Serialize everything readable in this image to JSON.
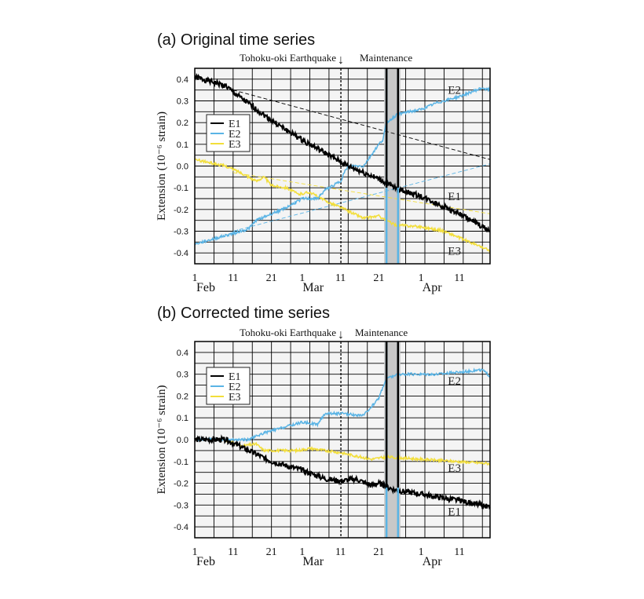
{
  "colors": {
    "E1": "#000000",
    "E2": "#5ab4e5",
    "E3": "#f2de3a",
    "maintenance": "#c8c8c8"
  },
  "chart_data": [
    {
      "type": "line",
      "title": "(a) Original time series",
      "ylabel": "Extension (10⁻⁶ strain)",
      "ylim": [
        -0.45,
        0.45
      ],
      "xlim": [
        "Feb 1",
        "Apr 19"
      ],
      "grid": true,
      "yticks": [
        "0.4",
        "0.3",
        "0.2",
        "0.1",
        "0.0",
        "-0.1",
        "-0.2",
        "-0.3",
        "-0.4"
      ],
      "xticks": [
        {
          "day": "1",
          "month": "Feb"
        },
        {
          "day": "11"
        },
        {
          "day": "21"
        },
        {
          "day": "1",
          "month": "Mar"
        },
        {
          "day": "11"
        },
        {
          "day": "21"
        },
        {
          "day": "1",
          "month": "Apr"
        },
        {
          "day": "11"
        }
      ],
      "annotations": {
        "earthquake": "Tohoku-oki Earthquake",
        "earthquake_date": "Mar 11",
        "arrow": "↓",
        "maintenance": "Maintenance",
        "maintenance_range": [
          "Mar 23",
          "Mar 26"
        ]
      },
      "legend": {
        "placement": "upper-left",
        "entries": [
          "E1",
          "E2",
          "E3"
        ]
      },
      "series": [
        {
          "name": "E1",
          "x": [
            "Feb 1",
            "Feb 9",
            "Feb 11",
            "Feb 21",
            "Mar 1",
            "Mar 11",
            "Mar 13",
            "Mar 21",
            "Mar 25",
            "Apr 1",
            "Apr 11",
            "Apr 19"
          ],
          "y": [
            0.41,
            0.37,
            0.34,
            0.21,
            0.12,
            0.02,
            0.0,
            -0.06,
            -0.1,
            -0.14,
            -0.22,
            -0.3
          ],
          "label_at": [
            "Apr 8",
            -0.14
          ]
        },
        {
          "name": "E2",
          "x": [
            "Feb 1",
            "Feb 11",
            "Feb 15",
            "Feb 17",
            "Feb 21",
            "Feb 25",
            "Mar 1",
            "Mar 5",
            "Mar 7",
            "Mar 11",
            "Mar 12",
            "Mar 13",
            "Mar 17",
            "Mar 19",
            "Mar 21",
            "Mar 22",
            "Mar 23",
            "Mar 26",
            "Apr 1",
            "Apr 5",
            "Apr 11",
            "Apr 17",
            "Apr 19"
          ],
          "y": [
            -0.36,
            -0.31,
            -0.29,
            -0.25,
            -0.22,
            -0.19,
            -0.15,
            -0.15,
            -0.11,
            -0.07,
            -0.03,
            0.0,
            0.0,
            0.05,
            0.1,
            0.12,
            0.2,
            0.24,
            0.26,
            0.29,
            0.32,
            0.36,
            0.35
          ],
          "label_at": [
            "Apr 8",
            0.35
          ]
        },
        {
          "name": "E3",
          "x": [
            "Feb 1",
            "Feb 9",
            "Feb 13",
            "Feb 17",
            "Feb 19",
            "Feb 21",
            "Feb 25",
            "Feb 28",
            "Mar 3",
            "Mar 7",
            "Mar 11",
            "Mar 17",
            "Mar 21",
            "Mar 25",
            "Apr 1",
            "Apr 7",
            "Apr 11",
            "Apr 19"
          ],
          "y": [
            0.03,
            0.0,
            -0.03,
            -0.07,
            -0.05,
            -0.09,
            -0.1,
            -0.13,
            -0.12,
            -0.16,
            -0.19,
            -0.24,
            -0.23,
            -0.27,
            -0.28,
            -0.3,
            -0.33,
            -0.39
          ],
          "label_at": [
            "Apr 8",
            -0.39
          ]
        }
      ],
      "trends": [
        {
          "series": "E1",
          "x": [
            "Feb 11",
            "Apr 19"
          ],
          "y": [
            0.35,
            0.03
          ]
        },
        {
          "series": "E2",
          "x": [
            "Feb 11",
            "Apr 19"
          ],
          "y": [
            -0.3,
            0.01
          ]
        },
        {
          "series": "E3",
          "x": [
            "Feb 11",
            "Apr 19"
          ],
          "y": [
            -0.03,
            -0.22
          ]
        }
      ]
    },
    {
      "type": "line",
      "title": "(b) Corrected time series",
      "ylabel": "Extension (10⁻⁶ strain)",
      "ylim": [
        -0.45,
        0.45
      ],
      "xlim": [
        "Feb 1",
        "Apr 19"
      ],
      "grid": true,
      "yticks": [
        "0.4",
        "0.3",
        "0.2",
        "0.1",
        "0.0",
        "-0.1",
        "-0.2",
        "-0.3",
        "-0.4"
      ],
      "xticks": [
        {
          "day": "1",
          "month": "Feb"
        },
        {
          "day": "11"
        },
        {
          "day": "21"
        },
        {
          "day": "1",
          "month": "Mar"
        },
        {
          "day": "11"
        },
        {
          "day": "21"
        },
        {
          "day": "1",
          "month": "Apr"
        },
        {
          "day": "11"
        }
      ],
      "annotations": {
        "earthquake": "Tohoku-oki Earthquake",
        "earthquake_date": "Mar 11",
        "arrow": "↓",
        "maintenance": "Maintenance",
        "maintenance_range": [
          "Mar 23",
          "Mar 26"
        ]
      },
      "legend": {
        "placement": "upper-left",
        "entries": [
          "E1",
          "E2",
          "E3"
        ]
      },
      "series": [
        {
          "name": "E1",
          "x": [
            "Feb 1",
            "Feb 9",
            "Feb 15",
            "Feb 21",
            "Mar 1",
            "Mar 7",
            "Mar 11",
            "Mar 15",
            "Mar 19",
            "Mar 21",
            "Mar 25",
            "Apr 1",
            "Apr 11",
            "Apr 19"
          ],
          "y": [
            0.0,
            0.0,
            -0.05,
            -0.1,
            -0.14,
            -0.18,
            -0.19,
            -0.18,
            -0.21,
            -0.2,
            -0.23,
            -0.25,
            -0.28,
            -0.31
          ],
          "label_at": [
            "Apr 8",
            -0.33
          ]
        },
        {
          "name": "E2",
          "x": [
            "Feb 1",
            "Feb 9",
            "Feb 15",
            "Feb 19",
            "Feb 25",
            "Mar 1",
            "Mar 5",
            "Mar 7",
            "Mar 11",
            "Mar 17",
            "Mar 19",
            "Mar 21",
            "Mar 22",
            "Mar 23",
            "Mar 26",
            "Apr 5",
            "Apr 11",
            "Apr 17",
            "Apr 19"
          ],
          "y": [
            0.0,
            0.0,
            0.0,
            0.03,
            0.06,
            0.08,
            0.07,
            0.12,
            0.12,
            0.11,
            0.15,
            0.19,
            0.24,
            0.28,
            0.3,
            0.3,
            0.31,
            0.32,
            0.29
          ],
          "label_at": [
            "Apr 8",
            0.27
          ]
        },
        {
          "name": "E3",
          "x": [
            "Feb 9",
            "Feb 13",
            "Feb 17",
            "Feb 19",
            "Feb 28",
            "Mar 3",
            "Mar 11",
            "Mar 19",
            "Mar 23",
            "Apr 1",
            "Apr 19"
          ],
          "y": [
            0.0,
            -0.03,
            -0.02,
            -0.05,
            -0.05,
            -0.04,
            -0.06,
            -0.09,
            -0.08,
            -0.09,
            -0.11
          ],
          "label_at": [
            "Apr 8",
            -0.13
          ]
        }
      ],
      "trends": []
    }
  ]
}
